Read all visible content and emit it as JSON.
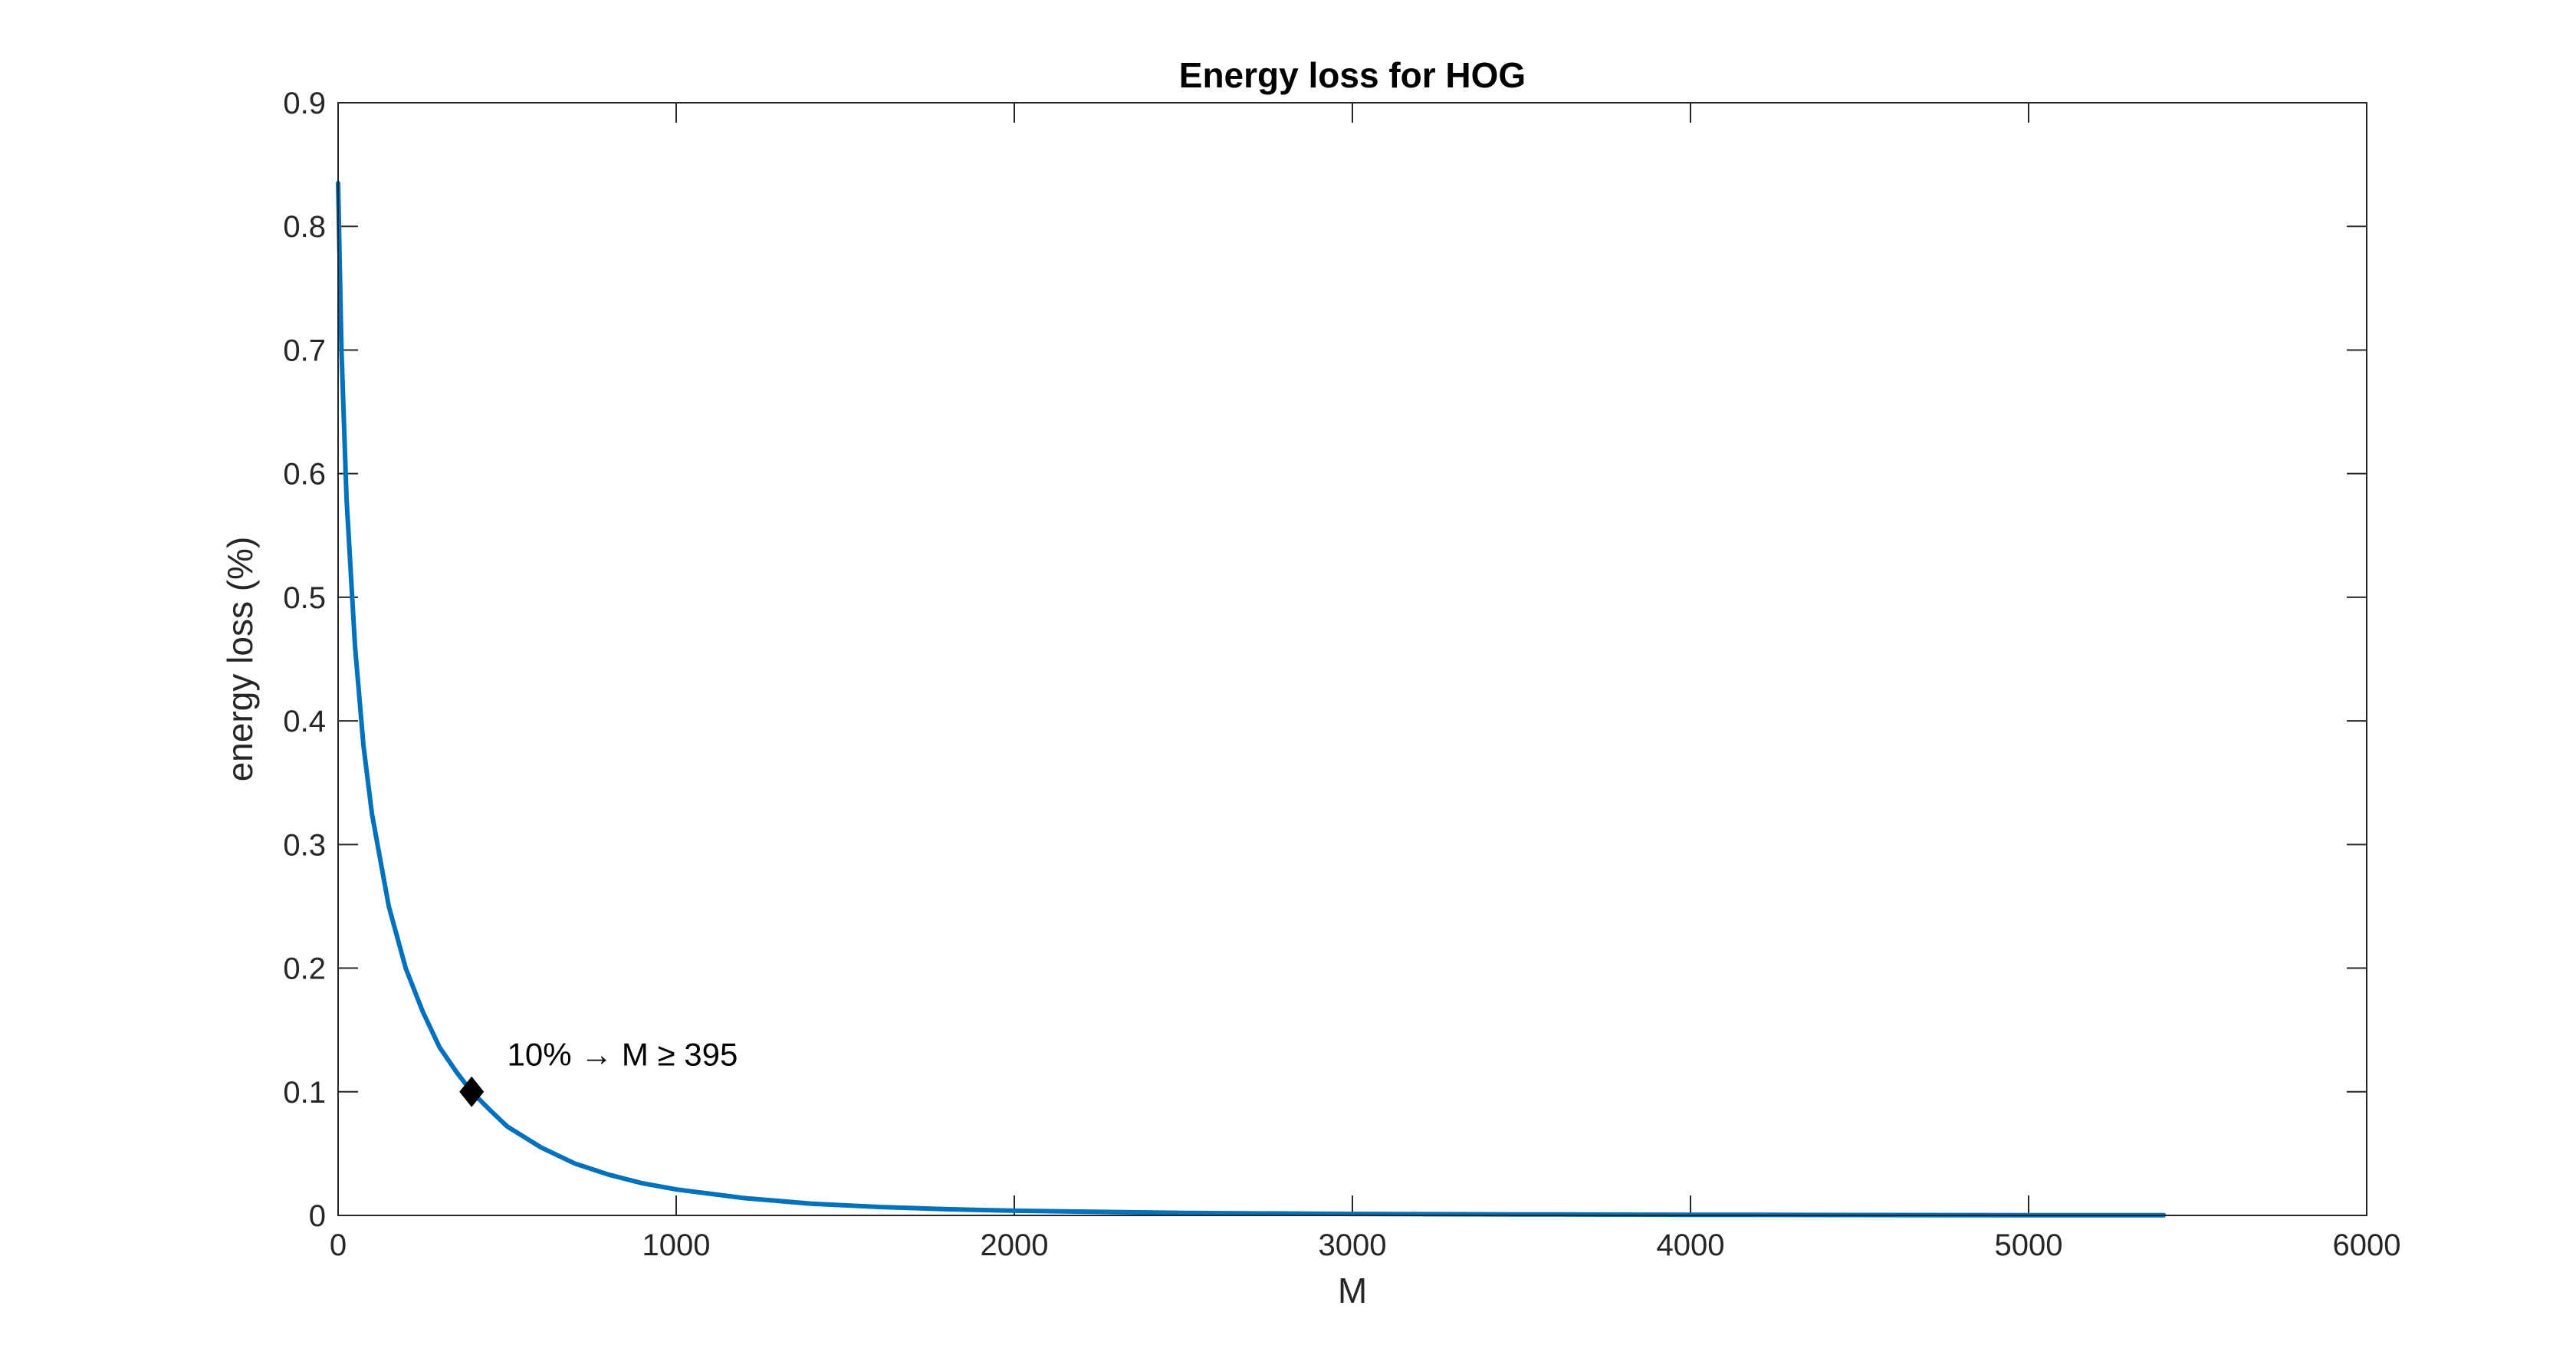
{
  "chart_data": {
    "type": "line",
    "title": "Energy loss for HOG",
    "xlabel": "M",
    "ylabel": "energy loss (%)",
    "xlim": [
      0,
      6000
    ],
    "ylim": [
      0,
      0.9
    ],
    "xticks": [
      0,
      1000,
      2000,
      3000,
      4000,
      5000,
      6000
    ],
    "yticks": [
      0,
      0.1,
      0.2,
      0.3,
      0.4,
      0.5,
      0.6,
      0.7,
      0.8,
      0.9
    ],
    "grid": false,
    "series": [
      {
        "color": "#0072BD",
        "x": [
          0,
          10,
          25,
          50,
          75,
          100,
          150,
          200,
          250,
          300,
          350,
          395,
          450,
          500,
          600,
          700,
          800,
          900,
          1000,
          1200,
          1400,
          1600,
          1800,
          2000,
          2500,
          3000,
          3500,
          4000,
          4500,
          5000,
          5400
        ],
        "y": [
          0.835,
          0.7,
          0.58,
          0.46,
          0.38,
          0.325,
          0.25,
          0.2,
          0.165,
          0.136,
          0.116,
          0.1,
          0.085,
          0.072,
          0.055,
          0.042,
          0.033,
          0.026,
          0.021,
          0.014,
          0.0095,
          0.0068,
          0.005,
          0.0038,
          0.002,
          0.0012,
          0.0008,
          0.0005,
          0.0003,
          0.0002,
          0.0001
        ]
      }
    ],
    "marker": {
      "x": 395,
      "y": 0.1,
      "shape": "diamond",
      "color": "#000000"
    },
    "annotation": {
      "text": "10% → M ≥ 395",
      "x": 500,
      "y": 0.13
    }
  }
}
